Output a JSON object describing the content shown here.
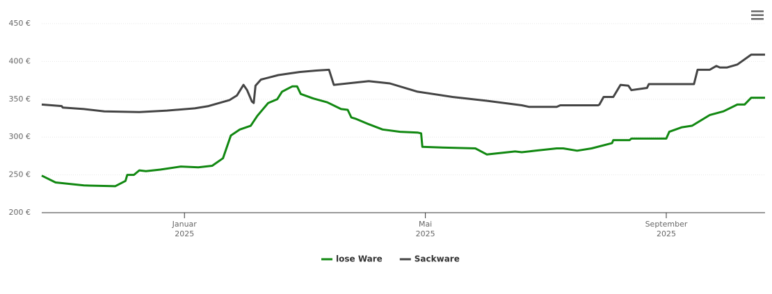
{
  "chart_data": {
    "type": "line",
    "xlim": [
      -2.37,
      9.64
    ],
    "xticks": [
      {
        "value": 0,
        "label": "Januar 2025"
      },
      {
        "value": 4,
        "label": "Mai 2025"
      },
      {
        "value": 8,
        "label": "September 2025"
      }
    ],
    "ylim": [
      200,
      450
    ],
    "yticks": [
      {
        "value": 200,
        "label": "200 €"
      },
      {
        "value": 250,
        "label": "250 €"
      },
      {
        "value": 300,
        "label": "300 €"
      },
      {
        "value": 350,
        "label": "350 €"
      },
      {
        "value": 400,
        "label": "400 €"
      },
      {
        "value": 450,
        "label": "450 €"
      }
    ],
    "grid": true,
    "legend": "bottom",
    "series": [
      {
        "name": "lose Ware",
        "color": "#118811",
        "x": [
          -2.37,
          -2.14,
          -1.67,
          -1.15,
          -0.98,
          -0.95,
          -0.84,
          -0.75,
          -0.64,
          -0.4,
          -0.06,
          0.23,
          0.46,
          0.64,
          0.77,
          0.92,
          1.1,
          1.21,
          1.39,
          1.54,
          1.62,
          1.79,
          1.87,
          1.93,
          2.14,
          2.37,
          2.6,
          2.71,
          2.77,
          2.85,
          3.06,
          3.29,
          3.58,
          3.87,
          3.93,
          3.95,
          4.33,
          4.83,
          5.02,
          5.49,
          5.6,
          5.83,
          6.18,
          6.29,
          6.52,
          6.76,
          7.1,
          7.12,
          7.39,
          7.42,
          8.0,
          8.05,
          8.26,
          8.43,
          8.72,
          8.95,
          9.18,
          9.3,
          9.41,
          9.64
        ],
        "values": [
          249,
          240,
          236,
          235,
          242,
          250,
          250,
          256,
          255,
          257,
          261,
          260,
          262,
          272,
          302,
          310,
          315,
          328,
          345,
          350,
          360,
          367,
          367,
          357,
          351,
          346,
          337,
          336,
          326,
          324,
          317,
          310,
          307,
          306,
          305,
          287,
          286,
          285,
          277,
          281,
          280,
          282,
          285,
          285,
          282,
          285,
          292,
          296,
          296,
          298,
          298,
          307,
          313,
          315,
          329,
          334,
          343,
          343,
          352,
          352
        ]
      },
      {
        "name": "Sackware",
        "color": "#444444",
        "x": [
          -2.37,
          -2.04,
          -2.02,
          -1.67,
          -1.33,
          -0.75,
          -0.29,
          0.17,
          0.4,
          0.75,
          0.87,
          0.98,
          1.04,
          1.12,
          1.15,
          1.18,
          1.27,
          1.56,
          1.91,
          2.19,
          2.4,
          2.48,
          2.83,
          3.06,
          3.41,
          3.87,
          4.45,
          5.02,
          5.6,
          5.72,
          6.18,
          6.24,
          6.52,
          6.87,
          6.89,
          6.96,
          7.12,
          7.24,
          7.37,
          7.42,
          7.68,
          7.71,
          8.46,
          8.52,
          8.72,
          8.83,
          8.89,
          9.01,
          9.18,
          9.41,
          9.64
        ],
        "values": [
          343,
          341,
          339,
          337,
          334,
          333,
          335,
          338,
          341,
          349,
          355,
          369,
          362,
          347,
          345,
          368,
          376,
          382,
          386,
          388,
          389,
          369,
          372,
          374,
          371,
          360,
          353,
          348,
          342,
          340,
          340,
          342,
          342,
          342,
          343,
          353,
          353,
          369,
          368,
          362,
          365,
          370,
          370,
          389,
          389,
          394,
          392,
          392,
          396,
          409,
          409
        ]
      }
    ]
  }
}
